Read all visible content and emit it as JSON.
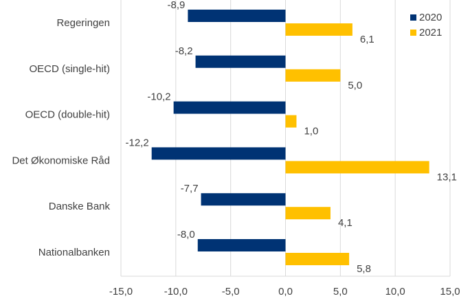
{
  "chart_data": {
    "type": "bar",
    "orientation": "horizontal",
    "categories": [
      "Regeringen",
      "OECD (single-hit)",
      "OECD (double-hit)",
      "Det Økonomiske Råd",
      "Danske Bank",
      "Nationalbanken"
    ],
    "series": [
      {
        "name": "2020",
        "color": "#003374",
        "values": [
          -8.9,
          -8.2,
          -10.2,
          -12.2,
          -7.7,
          -8.0
        ]
      },
      {
        "name": "2021",
        "color": "#FFC000",
        "values": [
          6.1,
          5.0,
          1.0,
          13.1,
          4.1,
          5.8
        ]
      }
    ],
    "data_labels": [
      [
        "-8,9",
        "-8,2",
        "-10,2",
        "-12,2",
        "-7,7",
        "-8,0"
      ],
      [
        "6,1",
        "5,0",
        "1,0",
        "13,1",
        "4,1",
        "5,8"
      ]
    ],
    "x_ticks": [
      -15,
      -10,
      -5,
      0,
      5,
      10,
      15
    ],
    "x_tick_labels": [
      "-15,0",
      "-10,0",
      "-5,0",
      "0,0",
      "5,0",
      "10,0",
      "15,0"
    ],
    "xlim": [
      -15,
      15
    ],
    "grid": "vertical",
    "legend_position": "top-right",
    "title": "",
    "xlabel": "",
    "ylabel": ""
  }
}
